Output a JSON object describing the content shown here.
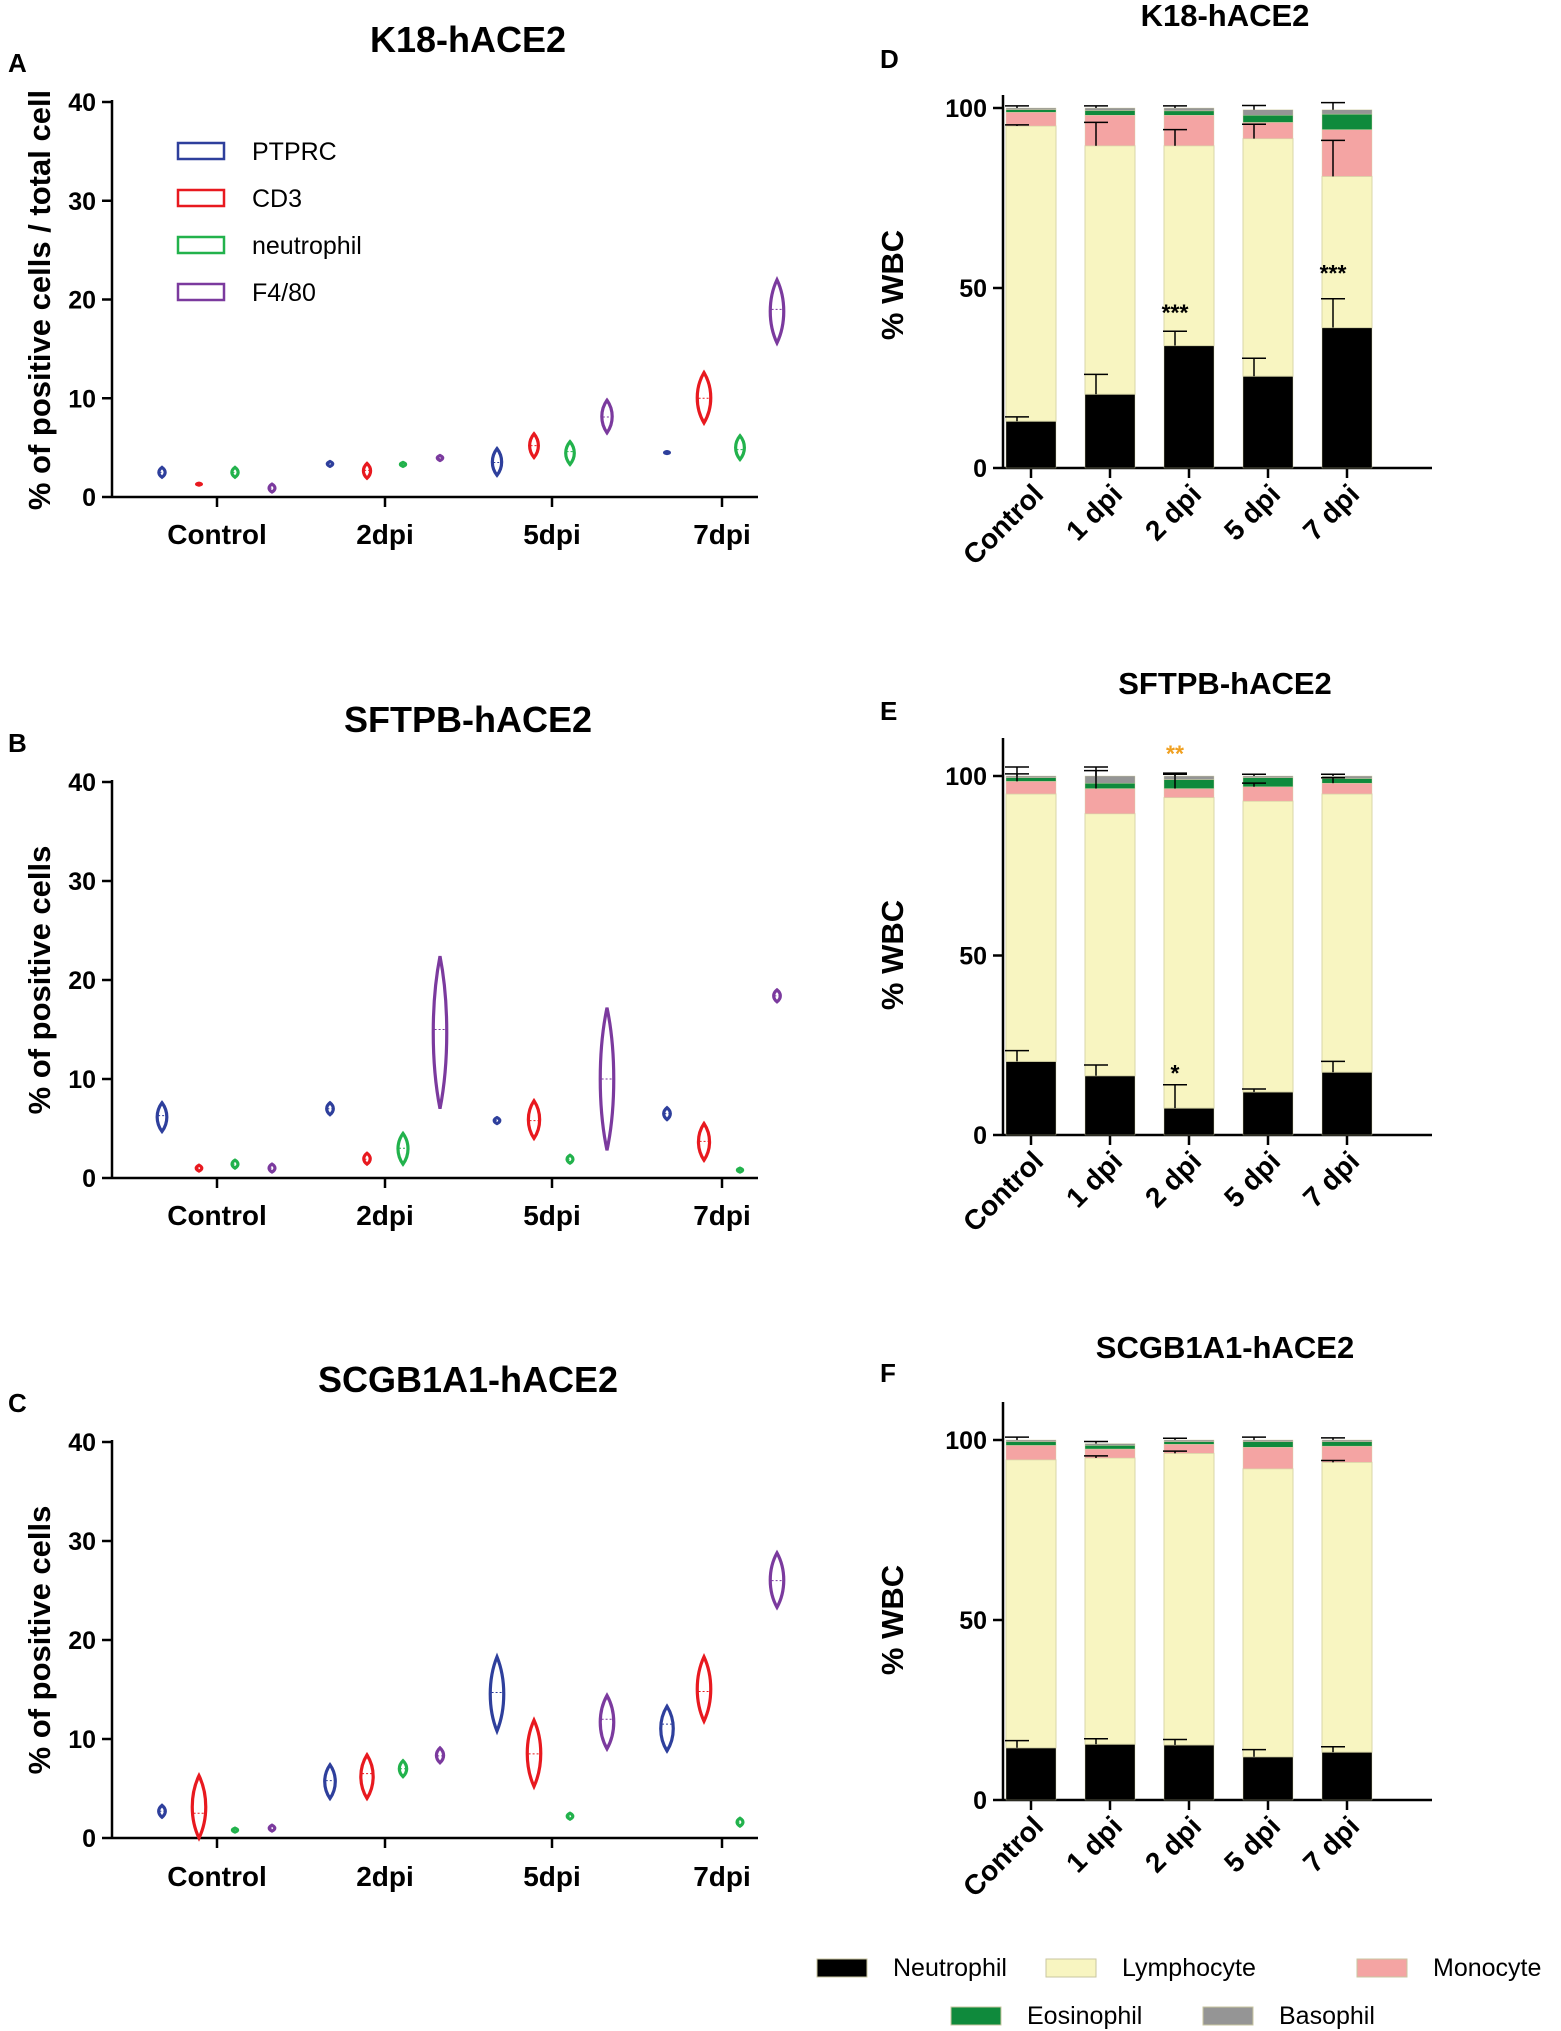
{
  "colors": {
    "PTPRC": "#2e3f9c",
    "CD3": "#e8191f",
    "neutrophil": "#22b24c",
    "F4/80": "#7b3a9e",
    "Neutrophil": "#000000",
    "Lymphocyte": "#f8f5c1",
    "Monocyte": "#f4a4a3",
    "Eosinophil": "#0f8a3c",
    "Basophil": "#959595",
    "orange": "#f0a020"
  },
  "legend_violin": [
    "PTPRC",
    "CD3",
    "neutrophil",
    "F4/80"
  ],
  "legend_bar": [
    "Neutrophil",
    "Lymphocyte",
    "Monocyte",
    "Eosinophil",
    "Basophil"
  ],
  "chart_data": [
    {
      "type": "violin",
      "label": "A",
      "title": "K18-hACE2",
      "ylabel": "% of positive cells / total cell",
      "xlabel": "",
      "ylim": [
        0,
        40
      ],
      "yticks": [
        0,
        10,
        20,
        30,
        40
      ],
      "categories": [
        "Control",
        "2dpi",
        "5dpi",
        "7dpi"
      ],
      "series": [
        {
          "name": "PTPRC",
          "median": [
            2.5,
            3.4,
            3.5,
            4.5
          ],
          "min": [
            2.0,
            3.1,
            2.2,
            4.4
          ],
          "max": [
            3.0,
            3.6,
            4.9,
            4.6
          ]
        },
        {
          "name": "CD3",
          "median": [
            1.3,
            2.7,
            5.2,
            10.0
          ],
          "min": [
            1.2,
            1.9,
            4.0,
            7.5
          ],
          "max": [
            1.4,
            3.4,
            6.4,
            12.6
          ]
        },
        {
          "name": "neutrophil",
          "median": [
            2.5,
            3.3,
            4.6,
            4.8
          ],
          "min": [
            2.0,
            3.1,
            3.3,
            3.8
          ],
          "max": [
            3.0,
            3.5,
            5.6,
            6.2
          ]
        },
        {
          "name": "F4/80",
          "median": [
            0.9,
            3.9,
            8.1,
            19.0
          ],
          "min": [
            0.5,
            3.7,
            6.5,
            15.6
          ],
          "max": [
            1.3,
            4.2,
            9.8,
            22.0
          ]
        }
      ]
    },
    {
      "type": "violin",
      "label": "B",
      "title": "SFTPB-hACE2",
      "ylabel": "% of positive cells",
      "xlabel": "",
      "ylim": [
        0,
        40
      ],
      "yticks": [
        0,
        10,
        20,
        30,
        40
      ],
      "categories": [
        "Control",
        "2dpi",
        "5dpi",
        "7dpi"
      ],
      "series": [
        {
          "name": "PTPRC",
          "median": [
            6.3,
            7.0,
            5.8,
            6.5
          ],
          "min": [
            4.7,
            6.4,
            5.5,
            5.9
          ],
          "max": [
            7.6,
            7.6,
            6.1,
            7.1
          ]
        },
        {
          "name": "CD3",
          "median": [
            1.0,
            1.9,
            5.8,
            3.7
          ],
          "min": [
            0.7,
            1.4,
            4.0,
            1.8
          ],
          "max": [
            1.3,
            2.5,
            7.8,
            5.5
          ]
        },
        {
          "name": "neutrophil",
          "median": [
            1.4,
            3.0,
            1.9,
            0.8
          ],
          "min": [
            1.0,
            1.4,
            1.5,
            0.6
          ],
          "max": [
            1.8,
            4.5,
            2.3,
            1.0
          ]
        },
        {
          "name": "F4/80",
          "median": [
            1.0,
            15.0,
            10.0,
            18.4
          ],
          "min": [
            0.6,
            7.0,
            2.8,
            17.8
          ],
          "max": [
            1.4,
            22.4,
            17.2,
            19.0
          ]
        }
      ]
    },
    {
      "type": "violin",
      "label": "C",
      "title": "SCGB1A1-hACE2",
      "ylabel": "% of positive cells",
      "xlabel": "",
      "ylim": [
        0,
        40
      ],
      "yticks": [
        0,
        10,
        20,
        30,
        40
      ],
      "categories": [
        "Control",
        "2dpi",
        "5dpi",
        "7dpi"
      ],
      "series": [
        {
          "name": "PTPRC",
          "median": [
            2.7,
            5.8,
            14.7,
            11.5
          ],
          "min": [
            2.1,
            4.0,
            10.8,
            8.8
          ],
          "max": [
            3.3,
            7.4,
            18.3,
            13.3
          ]
        },
        {
          "name": "CD3",
          "median": [
            2.5,
            6.5,
            8.5,
            14.8
          ],
          "min": [
            0.0,
            4.0,
            5.2,
            11.8
          ],
          "max": [
            6.3,
            8.4,
            11.9,
            18.3
          ]
        },
        {
          "name": "neutrophil",
          "median": [
            0.8,
            7.0,
            2.2,
            1.6
          ],
          "min": [
            0.6,
            6.2,
            1.9,
            1.2
          ],
          "max": [
            1.0,
            7.8,
            2.5,
            2.0
          ]
        },
        {
          "name": "F4/80",
          "median": [
            1.0,
            8.3,
            12.0,
            26.0
          ],
          "min": [
            0.7,
            7.6,
            9.0,
            23.3
          ],
          "max": [
            1.3,
            9.1,
            14.4,
            28.8
          ]
        }
      ]
    },
    {
      "type": "stacked_bar",
      "label": "D",
      "title": "K18-hACE2",
      "ylabel": "% WBC",
      "xlabel": "",
      "ylim": [
        0,
        100
      ],
      "yticks": [
        0,
        50,
        100
      ],
      "categories": [
        "Control",
        "1 dpi",
        "2 dpi",
        "5 dpi",
        "7 dpi"
      ],
      "series": [
        {
          "name": "Neutrophil",
          "values": [
            13,
            20.5,
            34,
            25.5,
            39
          ],
          "err": [
            1.2,
            5.5,
            4,
            5,
            8
          ]
        },
        {
          "name": "Lymphocyte",
          "values": [
            82,
            69,
            55.5,
            66,
            42
          ],
          "err": [
            0.3,
            6.5,
            4.5,
            4,
            10
          ]
        },
        {
          "name": "Monocyte",
          "values": [
            3.8,
            8.5,
            8.5,
            4.5,
            13
          ],
          "err": [
            0,
            0,
            0,
            0,
            0
          ]
        },
        {
          "name": "Eosinophil",
          "values": [
            0.7,
            1.3,
            1.2,
            2.0,
            4.3
          ],
          "err": [
            0,
            0,
            0,
            0,
            0
          ]
        },
        {
          "name": "Basophil",
          "values": [
            0.5,
            0.7,
            0.8,
            1.5,
            1.2
          ],
          "err": [
            0.6,
            0.6,
            0.6,
            1.2,
            2
          ]
        }
      ],
      "annotations": [
        {
          "category": "2 dpi",
          "text": "***",
          "y": 41,
          "color": "black"
        },
        {
          "category": "7 dpi",
          "text": "***",
          "y": 52,
          "color": "black"
        }
      ]
    },
    {
      "type": "stacked_bar",
      "label": "E",
      "title": "SFTPB-hACE2",
      "ylabel": "% WBC",
      "xlabel": "",
      "ylim": [
        0,
        100
      ],
      "yticks": [
        0,
        50,
        100
      ],
      "categories": [
        "Control",
        "1 dpi",
        "2 dpi",
        "5 dpi",
        "7 dpi"
      ],
      "series": [
        {
          "name": "Neutrophil",
          "values": [
            20.5,
            16.5,
            7.5,
            12,
            17.5
          ],
          "err": [
            3,
            3,
            6.5,
            0.8,
            3
          ]
        },
        {
          "name": "Lymphocyte",
          "values": [
            74.5,
            73,
            86.5,
            81,
            77.5
          ],
          "err": [
            0,
            0,
            0,
            0,
            0
          ]
        },
        {
          "name": "Monocyte",
          "values": [
            3.5,
            7,
            2.5,
            4,
            3
          ],
          "err": [
            4,
            6,
            4,
            1,
            1.5
          ]
        },
        {
          "name": "Eosinophil",
          "values": [
            1,
            1.5,
            2.5,
            2.5,
            1.3
          ],
          "err": [
            0,
            0,
            0,
            0,
            0
          ]
        },
        {
          "name": "Basophil",
          "values": [
            0.5,
            2,
            1,
            0.5,
            0.7
          ],
          "err": [
            0.6,
            1.5,
            0.8,
            0.5,
            0.5
          ]
        }
      ],
      "annotations": [
        {
          "category": "2 dpi",
          "text": "*",
          "y": 15,
          "color": "black"
        },
        {
          "category": "2 dpi",
          "text": "**",
          "y": 104,
          "color": "orange"
        }
      ]
    },
    {
      "type": "stacked_bar",
      "label": "F",
      "title": "SCGB1A1-hACE2",
      "ylabel": "% WBC",
      "xlabel": "",
      "ylim": [
        0,
        100
      ],
      "yticks": [
        0,
        50,
        100
      ],
      "categories": [
        "Control",
        "1 dpi",
        "2 dpi",
        "5 dpi",
        "7 dpi"
      ],
      "series": [
        {
          "name": "Neutrophil",
          "values": [
            14.5,
            15.5,
            15.3,
            12,
            13.3
          ],
          "err": [
            2,
            1.5,
            1.5,
            2,
            1.5
          ]
        },
        {
          "name": "Lymphocyte",
          "values": [
            80,
            79.5,
            81,
            80,
            80.5
          ],
          "err": [
            0,
            0.6,
            0.6,
            0,
            0.5
          ]
        },
        {
          "name": "Monocyte",
          "values": [
            4,
            2.5,
            2.5,
            6,
            4.5
          ],
          "err": [
            0,
            0,
            0,
            0,
            0
          ]
        },
        {
          "name": "Eosinophil",
          "values": [
            1,
            1,
            0.7,
            1.5,
            1.2
          ],
          "err": [
            0,
            0,
            0,
            0,
            0
          ]
        },
        {
          "name": "Basophil",
          "values": [
            0.5,
            0.5,
            0.5,
            0.5,
            0.5
          ],
          "err": [
            0.8,
            0.6,
            0.5,
            0.8,
            0.6
          ]
        }
      ],
      "annotations": []
    }
  ]
}
